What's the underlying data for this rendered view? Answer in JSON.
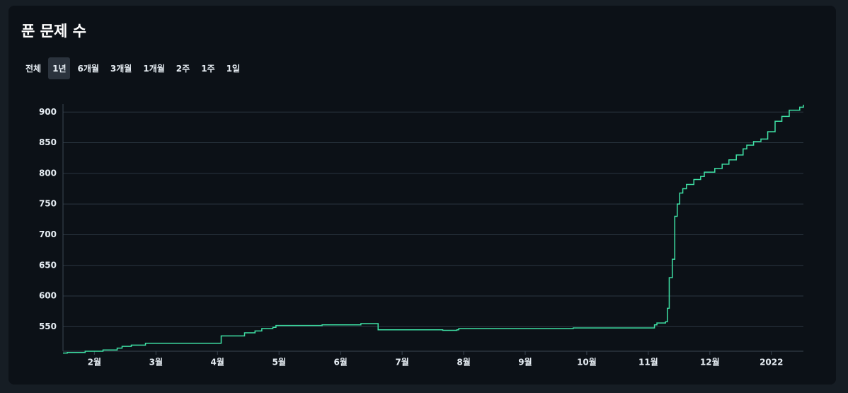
{
  "title": "푼 문제 수",
  "ranges": {
    "options": [
      "전체",
      "1년",
      "6개월",
      "3개월",
      "1개월",
      "2주",
      "1주",
      "1일"
    ],
    "active": 1
  },
  "chart_data": {
    "type": "line",
    "step": true,
    "color": "#3ee0a4",
    "grid": true,
    "x": [
      1.49,
      1.56,
      1.85,
      2.14,
      2.37,
      2.45,
      2.6,
      2.83,
      4.05,
      4.06,
      4.38,
      4.44,
      4.61,
      4.72,
      4.9,
      4.95,
      5.64,
      5.7,
      6.33,
      6.6,
      6.61,
      7.31,
      7.66,
      7.89,
      7.92,
      9.78,
      11.05,
      11.1,
      11.14,
      11.28,
      11.31,
      11.34,
      11.39,
      11.43,
      11.47,
      11.51,
      11.56,
      11.62,
      11.74,
      11.85,
      11.91,
      12.08,
      12.2,
      12.31,
      12.43,
      12.54,
      12.6,
      12.71,
      12.83,
      12.94,
      13.06,
      13.17,
      13.29,
      13.46,
      13.52
    ],
    "values": [
      507,
      508,
      510,
      512,
      515,
      518,
      520,
      523,
      523,
      535,
      535,
      540,
      543,
      547,
      549,
      552,
      552,
      553,
      555,
      555,
      545,
      545,
      544,
      545,
      547,
      548,
      548,
      553,
      556,
      558,
      580,
      630,
      660,
      730,
      750,
      768,
      775,
      782,
      790,
      795,
      802,
      808,
      815,
      822,
      830,
      840,
      846,
      852,
      856,
      868,
      885,
      893,
      903,
      908,
      912
    ],
    "xlim": [
      1.49,
      13.52
    ],
    "xticks": [
      {
        "value": 2,
        "label": "2월"
      },
      {
        "value": 3,
        "label": "3월"
      },
      {
        "value": 4,
        "label": "4월"
      },
      {
        "value": 5,
        "label": "5월"
      },
      {
        "value": 6,
        "label": "6월"
      },
      {
        "value": 7,
        "label": "7월"
      },
      {
        "value": 8,
        "label": "8월"
      },
      {
        "value": 9,
        "label": "9월"
      },
      {
        "value": 10,
        "label": "10월"
      },
      {
        "value": 11,
        "label": "11월"
      },
      {
        "value": 12,
        "label": "12월"
      },
      {
        "value": 13,
        "label": "2022"
      }
    ],
    "ylim": [
      510,
      913
    ],
    "yticks": [
      550,
      600,
      650,
      700,
      750,
      800,
      850,
      900
    ]
  }
}
